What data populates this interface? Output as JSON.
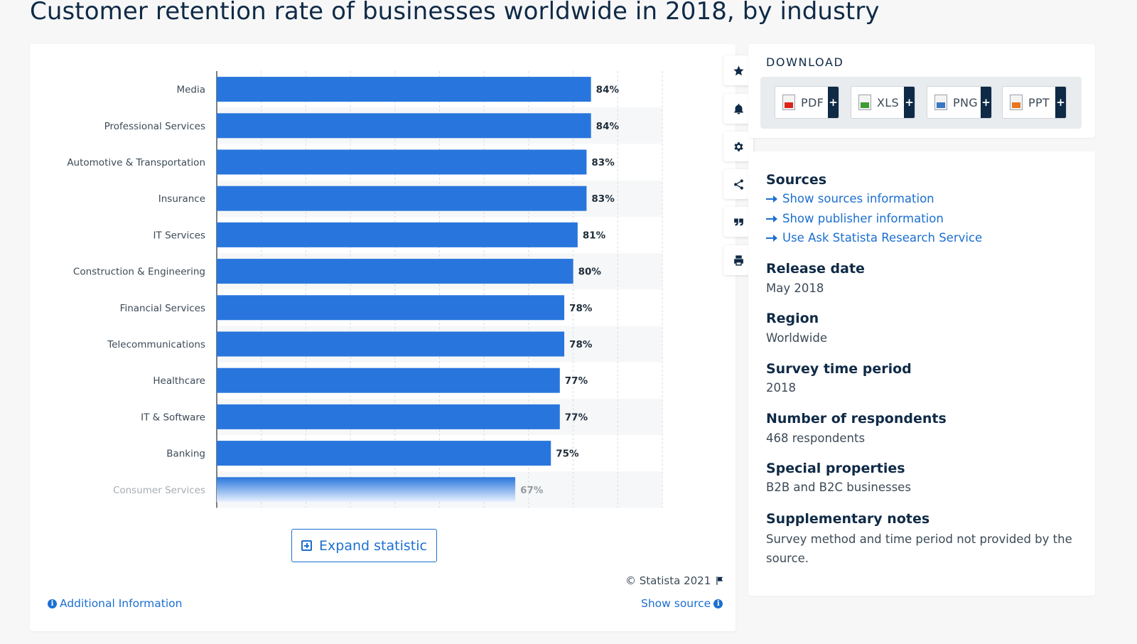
{
  "page": {
    "title": "Customer retention rate of businesses worldwide in 2018, by industry"
  },
  "chart_data": {
    "type": "bar",
    "orientation": "horizontal",
    "title": "Customer retention rate of businesses worldwide in 2018, by industry",
    "categories": [
      "Media",
      "Professional Services",
      "Automotive & Transportation",
      "Insurance",
      "IT Services",
      "Construction & Engineering",
      "Financial Services",
      "Telecommunications",
      "Healthcare",
      "IT & Software",
      "Banking",
      "Consumer Services"
    ],
    "values": [
      84,
      84,
      83,
      83,
      81,
      80,
      78,
      78,
      77,
      77,
      75,
      67
    ],
    "value_labels": [
      "84%",
      "84%",
      "83%",
      "83%",
      "81%",
      "80%",
      "78%",
      "78%",
      "77%",
      "77%",
      "75%",
      "67%"
    ],
    "unit": "%",
    "xlim": [
      0,
      100
    ],
    "grid": true,
    "bar_color": "#2876dd"
  },
  "toolbar": {
    "icons": [
      "star-icon",
      "bell-icon",
      "gear-icon",
      "share-icon",
      "quote-icon",
      "print-icon"
    ]
  },
  "chart_footer": {
    "expand_label": "Expand statistic",
    "copyright": "© Statista 2021",
    "additional_info": "Additional Information",
    "show_source": "Show source"
  },
  "download": {
    "title": "DOWNLOAD",
    "buttons": [
      {
        "label": "PDF",
        "plus": "+",
        "color": "#d9261c"
      },
      {
        "label": "XLS",
        "plus": "+",
        "color": "#3f9b34"
      },
      {
        "label": "PNG",
        "plus": "+",
        "color": "#3a78c4"
      },
      {
        "label": "PPT",
        "plus": "+",
        "color": "#e8761f"
      }
    ]
  },
  "info": {
    "sources_title": "Sources",
    "links": [
      "Show sources information",
      "Show publisher information",
      "Use Ask Statista Research Service"
    ],
    "release_title": "Release date",
    "release_value": "May 2018",
    "region_title": "Region",
    "region_value": "Worldwide",
    "period_title": "Survey time period",
    "period_value": "2018",
    "respondents_title": "Number of respondents",
    "respondents_value": "468 respondents",
    "special_title": "Special properties",
    "special_value": "B2B and B2C businesses",
    "notes_title": "Supplementary notes",
    "notes_value": "Survey method and time period not provided by the source."
  }
}
